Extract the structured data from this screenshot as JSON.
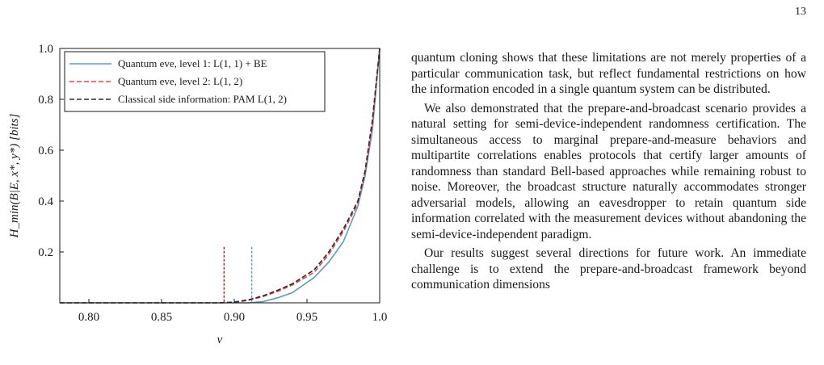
{
  "page_number": "13",
  "chart_data": {
    "type": "line",
    "xlabel": "ν",
    "ylabel": "H_min(B|E, x*, y*) [bits]",
    "xlim": [
      0.78,
      1.0
    ],
    "ylim": [
      0.0,
      1.0
    ],
    "x_ticks": [
      "0.80",
      "0.85",
      "0.90",
      "0.95",
      "1.0"
    ],
    "y_ticks": [
      "0.2",
      "0.4",
      "0.6",
      "0.8",
      "1.0"
    ],
    "grid": false,
    "legend_position": "top-left",
    "series": [
      {
        "name": "Quantum eve, level 1: L(1, 1) + BE",
        "color": "#5b9bc6",
        "dash": "solid",
        "x": [
          0.78,
          0.91,
          0.92,
          0.93,
          0.94,
          0.955,
          0.965,
          0.975,
          0.985,
          0.99,
          0.995,
          1.0
        ],
        "y": [
          0.0,
          0.0,
          0.005,
          0.02,
          0.04,
          0.1,
          0.16,
          0.24,
          0.38,
          0.5,
          0.68,
          1.0
        ]
      },
      {
        "name": "Quantum eve, level 2: L(1, 2)",
        "color": "#ee4444",
        "dash": "dashed",
        "x": [
          0.78,
          0.89,
          0.9,
          0.91,
          0.92,
          0.93,
          0.94,
          0.955,
          0.965,
          0.975,
          0.985,
          0.99,
          0.995,
          1.0
        ],
        "y": [
          0.0,
          0.0,
          0.002,
          0.01,
          0.025,
          0.045,
          0.07,
          0.12,
          0.19,
          0.28,
          0.39,
          0.51,
          0.7,
          1.0
        ]
      },
      {
        "name": "Classical side information: PAM L(1, 2)",
        "color": "#2a2a2a",
        "dash": "dashed",
        "x": [
          0.78,
          0.89,
          0.9,
          0.91,
          0.92,
          0.93,
          0.94,
          0.955,
          0.965,
          0.975,
          0.985,
          0.99,
          0.995,
          1.0
        ],
        "y": [
          0.0,
          0.0,
          0.003,
          0.012,
          0.028,
          0.05,
          0.075,
          0.13,
          0.2,
          0.29,
          0.4,
          0.52,
          0.72,
          1.0
        ]
      }
    ],
    "threshold_markers": [
      {
        "x": 0.893,
        "color": "#8b2f2f"
      },
      {
        "x": 0.912,
        "color": "#5b9bc6"
      }
    ]
  },
  "paragraphs": [
    "quantum cloning shows that these limitations are not merely properties of a particular communication task, but reflect fundamental restrictions on how the information encoded in a single quantum system can be distributed.",
    "We also demonstrated that the prepare-and-broadcast scenario provides a natural setting for semi-device-independent randomness certification. The simultaneous access to marginal prepare-and-measure behaviors and multipartite correlations enables protocols that certify larger amounts of randomness than standard Bell-based approaches while remaining robust to noise. Moreover, the broadcast structure naturally accommodates stronger adversarial models, allowing an eavesdropper to retain quantum side information correlated with the measurement devices without abandoning the semi-device-independent paradigm.",
    "Our results suggest several directions for future work. An immediate challenge is to extend the prepare-and-broadcast framework beyond communication dimensions"
  ]
}
